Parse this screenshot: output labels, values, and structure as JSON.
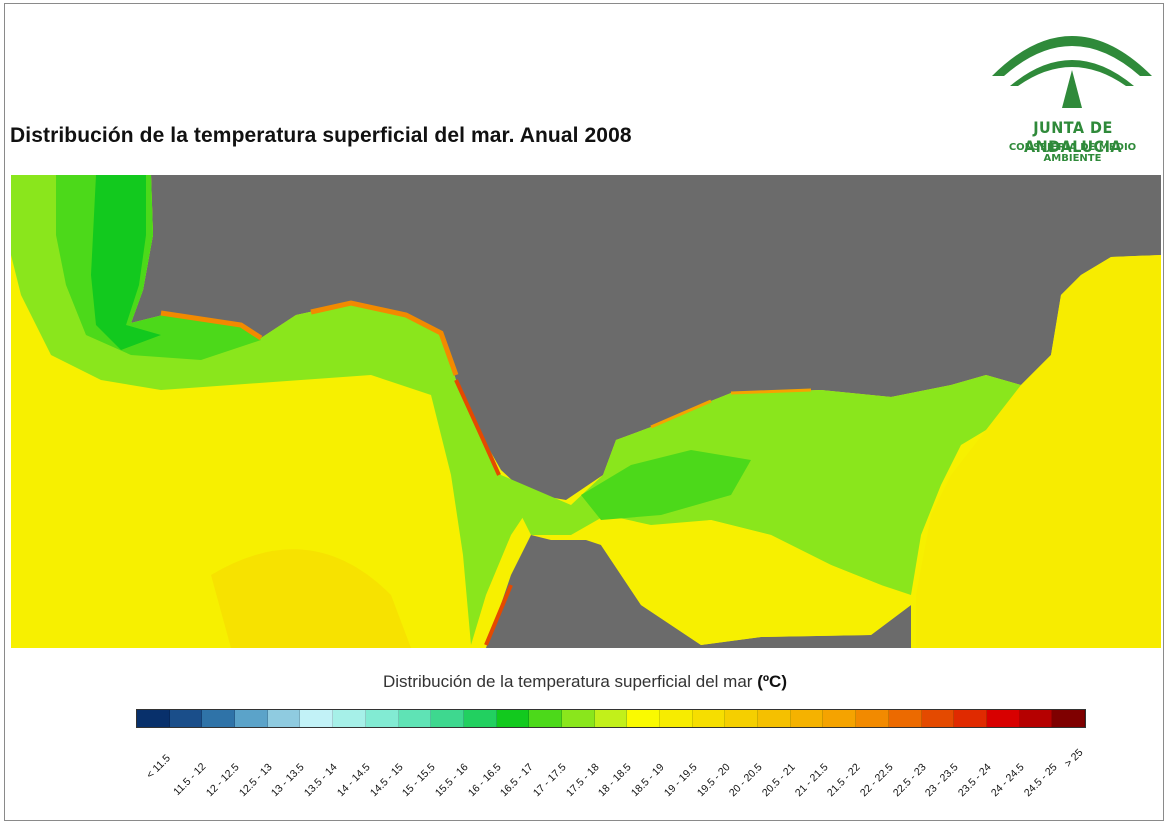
{
  "title": "Distribución de la temperatura superficial del mar. Anual 2008",
  "logo": {
    "name": "JUNTA DE ANDALUCIA",
    "department": "CONSEJERÍA DE MEDIO AMBIENTE",
    "colors": {
      "green": "#2f8a3a"
    }
  },
  "map": {
    "land_color": "#6b6b6b",
    "dominant_sea_class": "18.5 - 19"
  },
  "legend": {
    "title": "Distribución de la temperatura superficial del mar",
    "unit": "(ºC)",
    "classes": [
      {
        "label": "< 11.5",
        "color": "#08306b"
      },
      {
        "label": "11.5 - 12",
        "color": "#1a4e8a"
      },
      {
        "label": "12 - 12.5",
        "color": "#2f73a8"
      },
      {
        "label": "12.5 - 13",
        "color": "#5ba3c9"
      },
      {
        "label": "13 - 13.5",
        "color": "#8fcbe0"
      },
      {
        "label": "13.5 - 14",
        "color": "#c2f2f7"
      },
      {
        "label": "14 - 14.5",
        "color": "#a6f0e8"
      },
      {
        "label": "14.5 - 15",
        "color": "#82ebd3"
      },
      {
        "label": "15 - 15.5",
        "color": "#5fe3b5"
      },
      {
        "label": "15.5 - 16",
        "color": "#3ed88f"
      },
      {
        "label": "16 - 16.5",
        "color": "#22d060"
      },
      {
        "label": "16.5 - 17",
        "color": "#12c91e"
      },
      {
        "label": "17 - 17.5",
        "color": "#4cd91a"
      },
      {
        "label": "17.5 - 18",
        "color": "#8ae61c"
      },
      {
        "label": "18 - 18.5",
        "color": "#c2f01a"
      },
      {
        "label": "18.5 - 19",
        "color": "#fafa00"
      },
      {
        "label": "19 - 19.5",
        "color": "#f7ec00"
      },
      {
        "label": "19.5 - 20",
        "color": "#f6de00"
      },
      {
        "label": "20 - 20.5",
        "color": "#f5cf00"
      },
      {
        "label": "20.5 - 21",
        "color": "#f5c000"
      },
      {
        "label": "21 - 21.5",
        "color": "#f5b200"
      },
      {
        "label": "21.5 - 22",
        "color": "#f5a300"
      },
      {
        "label": "22 - 22.5",
        "color": "#f28a00"
      },
      {
        "label": "22.5 - 23",
        "color": "#ec6a00"
      },
      {
        "label": "23 - 23.5",
        "color": "#e44a00"
      },
      {
        "label": "23.5 - 24",
        "color": "#e02a00"
      },
      {
        "label": "24 - 24.5",
        "color": "#d80000"
      },
      {
        "label": "24.5 - 25",
        "color": "#b50000"
      },
      {
        "label": "> 25",
        "color": "#7f0000"
      }
    ]
  }
}
